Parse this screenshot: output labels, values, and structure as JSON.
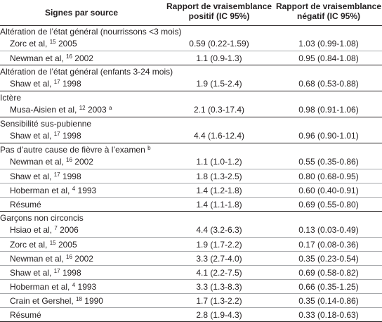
{
  "header": {
    "col1": "Signes par source",
    "col2a": "Rapport de vraisemblance",
    "col2b": "positif (IC 95%)",
    "col3a": "Rapport de vraisemblance",
    "col3b": "négatif (IC 95%)"
  },
  "groups": [
    {
      "title": "Altération de l’état général (nourrissons <3 mois)",
      "rows": [
        {
          "name": "Zorc et al,",
          "ref": "15",
          "year": " 2005",
          "pos": "0.59 (0.22-1.59)",
          "neg": "1.03 (0.99-1.08)"
        },
        {
          "name": "Newman et al,",
          "ref": "16",
          "year": " 2002",
          "pos": "1.1 (0.9-1.3)",
          "neg": "0.95 (0.84-1.08)"
        }
      ]
    },
    {
      "title": "Altération de l’état général (enfants 3-24 mois)",
      "rows": [
        {
          "name": "Shaw et al,",
          "ref": "17",
          "year": " 1998",
          "pos": "1.9 (1.5-2.4)",
          "neg": "0.68 (0.53-0.88)"
        }
      ]
    },
    {
      "title": "Ictère",
      "rows": [
        {
          "name": "Musa-Aisien et al,",
          "ref": "12",
          "year": " 2003",
          "note": "a",
          "pos": "2.1 (0.3-17.4)",
          "neg": "0.98 (0.91-1.06)"
        }
      ]
    },
    {
      "title": "Sensibilité sus-pubienne",
      "rows": [
        {
          "name": "Shaw et al,",
          "ref": "17",
          "year": " 1998",
          "pos": "4.4 (1.6-12.4)",
          "neg": "0.96 (0.90-1.01)"
        }
      ]
    },
    {
      "title": "Pas d’autre cause de fièvre à l’examen",
      "title_note": "b",
      "rows": [
        {
          "name": "Newman et al,",
          "ref": "16",
          "year": " 2002",
          "pos": "1.1 (1.0-1.2)",
          "neg": "0.55 (0.35-0.86)"
        },
        {
          "name": "Shaw et al,",
          "ref": "17",
          "year": " 1998",
          "pos": "1.8 (1.3-2.5)",
          "neg": "0.80 (0.68-0.95)"
        },
        {
          "name": "Hoberman et al,",
          "ref": "4",
          "year": " 1993",
          "pos": "1.4 (1.2-1.8)",
          "neg": "0.60 (0.40-0.91)"
        },
        {
          "name": "Résumé",
          "ref": "",
          "year": "",
          "pos": "1.4 (1.1-1.8)",
          "neg": "0.69 (0.55-0.80)"
        }
      ]
    },
    {
      "title": "Garçons non circoncis",
      "rows": [
        {
          "name": "Hsiao et al,",
          "ref": "7",
          "year": " 2006",
          "pos": "4.4 (3.2-6.3)",
          "neg": "0.13 (0.03-0.49)"
        },
        {
          "name": "Zorc et al,",
          "ref": "15",
          "year": " 2005",
          "pos": "1.9 (1.7-2.2)",
          "neg": "0.17 (0.08-0.36)"
        },
        {
          "name": "Newman et al,",
          "ref": "16",
          "year": " 2002",
          "pos": "3.3 (2.7-4.0)",
          "neg": "0.35 (0.23-0.54)"
        },
        {
          "name": "Shaw et al,",
          "ref": "17",
          "year": " 1998",
          "pos": "4.1 (2.2-7.5)",
          "neg": "0.69 (0.58-0.82)"
        },
        {
          "name": "Hoberman et al,",
          "ref": "4",
          "year": " 1993",
          "pos": "3.3 (1.3-8.3)",
          "neg": "0.66 (0.35-1.25)"
        },
        {
          "name": "Crain et Gershel,",
          "ref": "18",
          "year": " 1990",
          "pos": "1.7 (1.3-2.2)",
          "neg": "0.35 (0.14-0.86)"
        },
        {
          "name": "Résumé",
          "ref": "",
          "year": "",
          "pos": "2.8 (1.9-4.3)",
          "neg": "0.33 (0.18-0.63)"
        }
      ]
    }
  ]
}
